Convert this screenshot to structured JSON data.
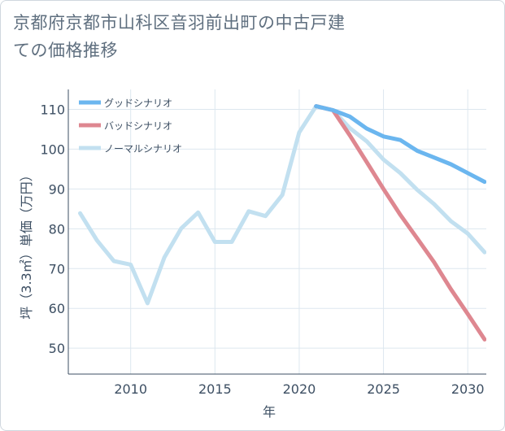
{
  "title": "京都府京都市山科区音羽前出町の中古戸建ての価格推移",
  "chart_data": {
    "type": "line",
    "title": "京都府京都市山科区音羽前出町の中古戸建ての価格推移",
    "xlabel": "年",
    "ylabel": "坪（3.3㎡）単価（万円）",
    "xlim": [
      2006.3,
      2031.1
    ],
    "ylim": [
      43.5,
      115
    ],
    "xticks": [
      2010,
      2015,
      2020,
      2025,
      2030
    ],
    "yticks": [
      50,
      60,
      70,
      80,
      90,
      100,
      110
    ],
    "grid": true,
    "legend_position": "top-left",
    "series": [
      {
        "name": "グッドシナリオ",
        "color": "#6bb6ef",
        "x": [
          2021,
          2022,
          2023,
          2024,
          2025,
          2026,
          2027,
          2028,
          2029,
          2030,
          2031
        ],
        "y": [
          110.8,
          109.8,
          108.2,
          105.2,
          103.2,
          102.3,
          99.6,
          97.9,
          96.2,
          94.0,
          91.8
        ]
      },
      {
        "name": "バッドシナリオ",
        "color": "#de8790",
        "x": [
          2021,
          2022,
          2023,
          2024,
          2025,
          2026,
          2027,
          2028,
          2029,
          2030,
          2031
        ],
        "y": [
          110.8,
          109.8,
          103.5,
          96.8,
          90.0,
          83.5,
          77.6,
          71.6,
          64.8,
          58.6,
          52.2
        ]
      },
      {
        "name": "ノーマルシナリオ",
        "color": "#c2e0f0",
        "x": [
          2007,
          2008,
          2009,
          2010,
          2011,
          2012,
          2013,
          2014,
          2015,
          2016,
          2017,
          2018,
          2019,
          2020,
          2021,
          2022,
          2023,
          2024,
          2025,
          2026,
          2027,
          2028,
          2029,
          2030,
          2031
        ],
        "y": [
          83.9,
          77.1,
          71.9,
          71.0,
          61.3,
          72.8,
          80.1,
          84.1,
          76.7,
          76.7,
          84.4,
          83.2,
          88.5,
          104.2,
          110.8,
          109.8,
          105.3,
          102.0,
          97.4,
          94.0,
          89.8,
          86.2,
          81.9,
          78.8,
          74.1
        ]
      }
    ]
  }
}
